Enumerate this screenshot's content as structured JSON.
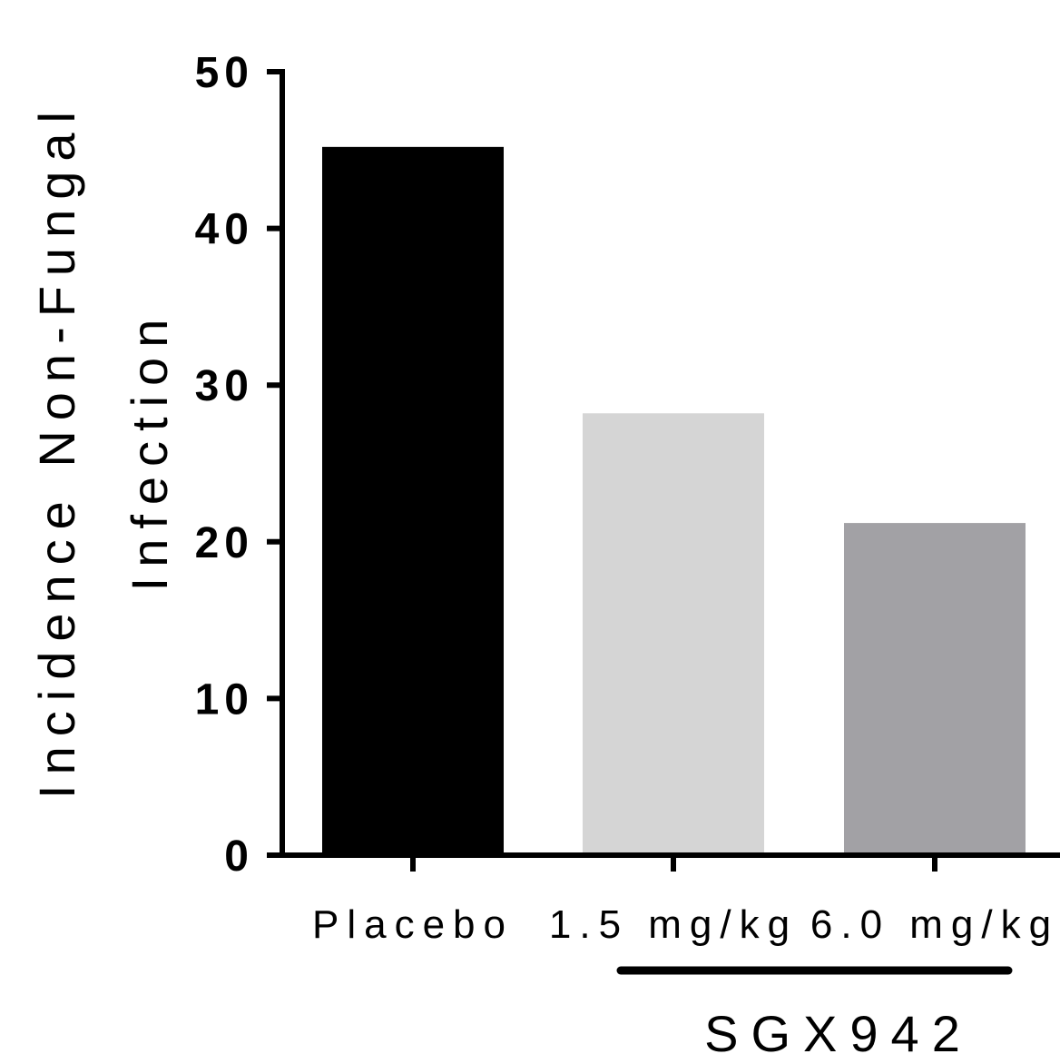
{
  "chart_data": {
    "type": "bar",
    "title": "",
    "xlabel": "",
    "ylabel": [
      "Incidence Non-Fungal",
      "Infection"
    ],
    "categories": [
      "Placebo",
      "1.5 mg/kg",
      "6.0 mg/kg"
    ],
    "values": [
      45.2,
      28.2,
      21.2
    ],
    "bar_colors": [
      "#000000",
      "#d5d5d5",
      "#a2a1a5"
    ],
    "ylim": [
      0,
      50
    ],
    "yticks": [
      0,
      10,
      20,
      30,
      40,
      50
    ],
    "ytick_labels": [
      "0",
      "10",
      "20",
      "30",
      "40",
      "50"
    ],
    "grid": false,
    "legend": "none",
    "group_annotation": {
      "label": "SGX942",
      "spans_categories": [
        "1.5 mg/kg",
        "6.0 mg/kg"
      ]
    }
  }
}
